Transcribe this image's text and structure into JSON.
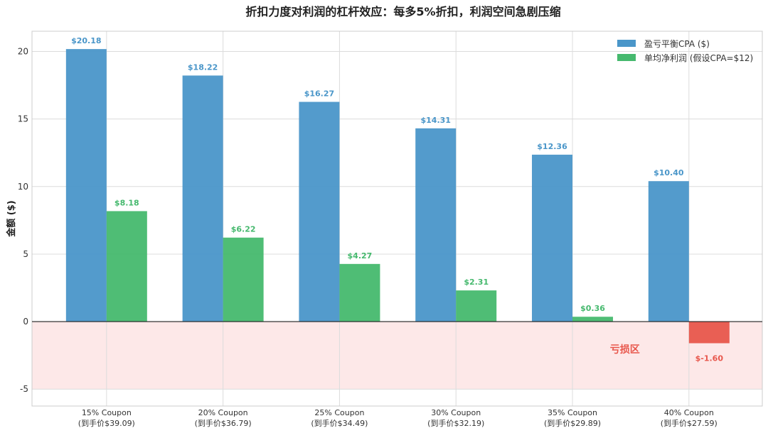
{
  "chart_data": {
    "type": "bar",
    "title": "折扣力度对利润的杠杆效应：每多5%折扣，利润空间急剧压缩",
    "xlabel": "",
    "ylabel": "金额 ($)",
    "ylim": [
      -6.25,
      21.5
    ],
    "yticks": [
      -5,
      0,
      5,
      10,
      15,
      20
    ],
    "grid": true,
    "legend_position": "top-right",
    "categories": [
      [
        "15% Coupon",
        "(到手价$39.09)"
      ],
      [
        "20% Coupon",
        "(到手价$36.79)"
      ],
      [
        "25% Coupon",
        "(到手价$34.49)"
      ],
      [
        "30% Coupon",
        "(到手价$32.19)"
      ],
      [
        "35% Coupon",
        "(到手价$29.89)"
      ],
      [
        "40% Coupon",
        "(到手价$27.59)"
      ]
    ],
    "series": [
      {
        "name": "盈亏平衡CPA ($)",
        "color": "#4a96c9",
        "values": [
          20.18,
          18.22,
          16.27,
          14.31,
          12.36,
          10.4
        ],
        "labels": [
          "$20.18",
          "$18.22",
          "$16.27",
          "$14.31",
          "$12.36",
          "$10.40"
        ]
      },
      {
        "name": "单均净利润 (假设CPA=$12)",
        "color": "#46b96e",
        "negative_color": "#e8574c",
        "values": [
          8.18,
          6.22,
          4.27,
          2.31,
          0.36,
          -1.6
        ],
        "labels": [
          "$8.18",
          "$6.22",
          "$4.27",
          "$2.31",
          "$0.36",
          "$-1.60"
        ]
      }
    ],
    "annotations": [
      {
        "text": "亏损区",
        "region": [
          -5,
          0
        ],
        "color": "#e8574c",
        "fill": "#fde8e8"
      }
    ]
  }
}
